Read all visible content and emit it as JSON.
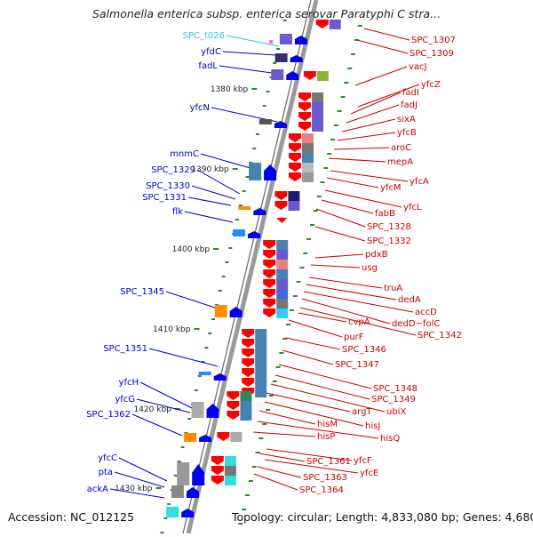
{
  "title": "Salmonella enterica subsp. enterica serovar Paratyphi C stra...",
  "accession": "Accession: NC_012125",
  "topology": "Topology: circular; Length: 4,833,080 bp; Genes: 4,680",
  "colors": {
    "left_label": "#0000cc",
    "right_label": "#cc0000",
    "trna_label": "#33bbee",
    "ruler": "#888888",
    "forward": "#0000ff",
    "reverse": "#ff0000"
  },
  "scale_labels": [
    "1380 kbp",
    "1390 kbp",
    "1400 kbp",
    "1410 kbp",
    "1420 kbp",
    "1430 kbp"
  ],
  "left_genes": [
    "SPC_t026",
    "yfdC",
    "fadL",
    "yfcN",
    "mnmC",
    "SPC_1329",
    "SPC_1330",
    "SPC_1331",
    "flk",
    "SPC_1345",
    "SPC_1351",
    "yfcH",
    "yfcG",
    "SPC_1362",
    "yfcC",
    "pta",
    "ackA"
  ],
  "right_genes": [
    "SPC_1307",
    "SPC_1309",
    "vacJ",
    "yfcZ",
    "fadI",
    "fadJ",
    "sixA",
    "yfcB",
    "aroC",
    "mepA",
    "yfcA",
    "yfcM",
    "yfcL",
    "fabB",
    "SPC_1328",
    "SPC_1332",
    "pdxB",
    "usg",
    "truA",
    "dedA",
    "accD",
    "dedD~folC",
    "SPC_1342",
    "cvpA",
    "purF",
    "SPC_1346",
    "SPC_1347",
    "SPC_1348",
    "SPC_1349",
    "ubiX",
    "argT",
    "hisJ",
    "hisM",
    "hisQ",
    "hisP",
    "yfcF",
    "SPC_1361",
    "yfcE",
    "SPC_1363",
    "SPC_1364"
  ]
}
